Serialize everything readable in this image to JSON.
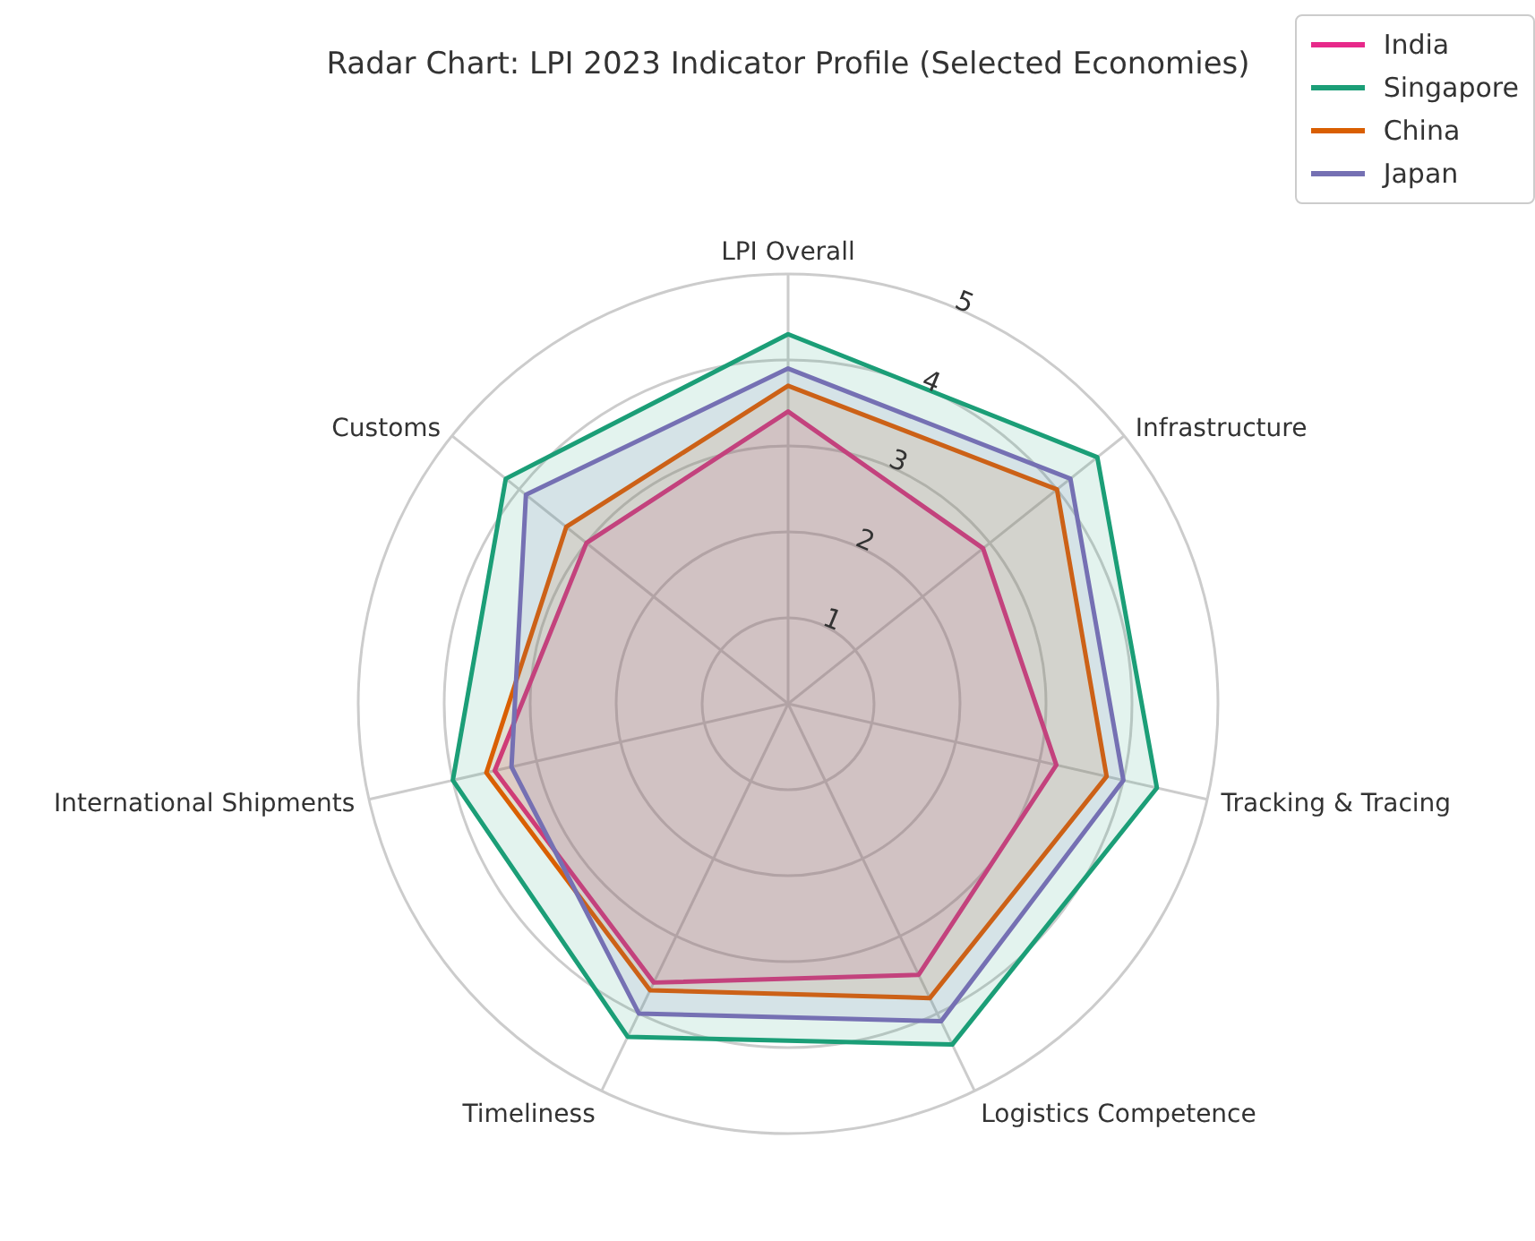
{
  "chart_data": {
    "type": "radar",
    "title": "Radar Chart: LPI 2023 Indicator Profile (Selected Economies)",
    "categories": [
      "LPI Overall",
      "Infrastructure",
      "Tracking & Tracing",
      "Logistics Competence",
      "Timeliness",
      "International Shipments",
      "Customs"
    ],
    "series": [
      {
        "name": "India",
        "color": "#e7298a",
        "values": [
          3.4,
          2.9,
          3.2,
          3.5,
          3.6,
          3.5,
          3.0
        ]
      },
      {
        "name": "Singapore",
        "color": "#1b9e77",
        "values": [
          4.3,
          4.6,
          4.4,
          4.4,
          4.3,
          4.0,
          4.2
        ]
      },
      {
        "name": "China",
        "color": "#d95f02",
        "values": [
          3.7,
          4.0,
          3.8,
          3.8,
          3.7,
          3.6,
          3.3
        ]
      },
      {
        "name": "Japan",
        "color": "#7570b3",
        "values": [
          3.9,
          4.2,
          4.0,
          4.1,
          4.0,
          3.3,
          3.9
        ]
      }
    ],
    "ylim": [
      0,
      5
    ],
    "yticks": [
      1,
      2,
      3,
      4,
      5
    ],
    "grid": true,
    "legend": "top right"
  }
}
